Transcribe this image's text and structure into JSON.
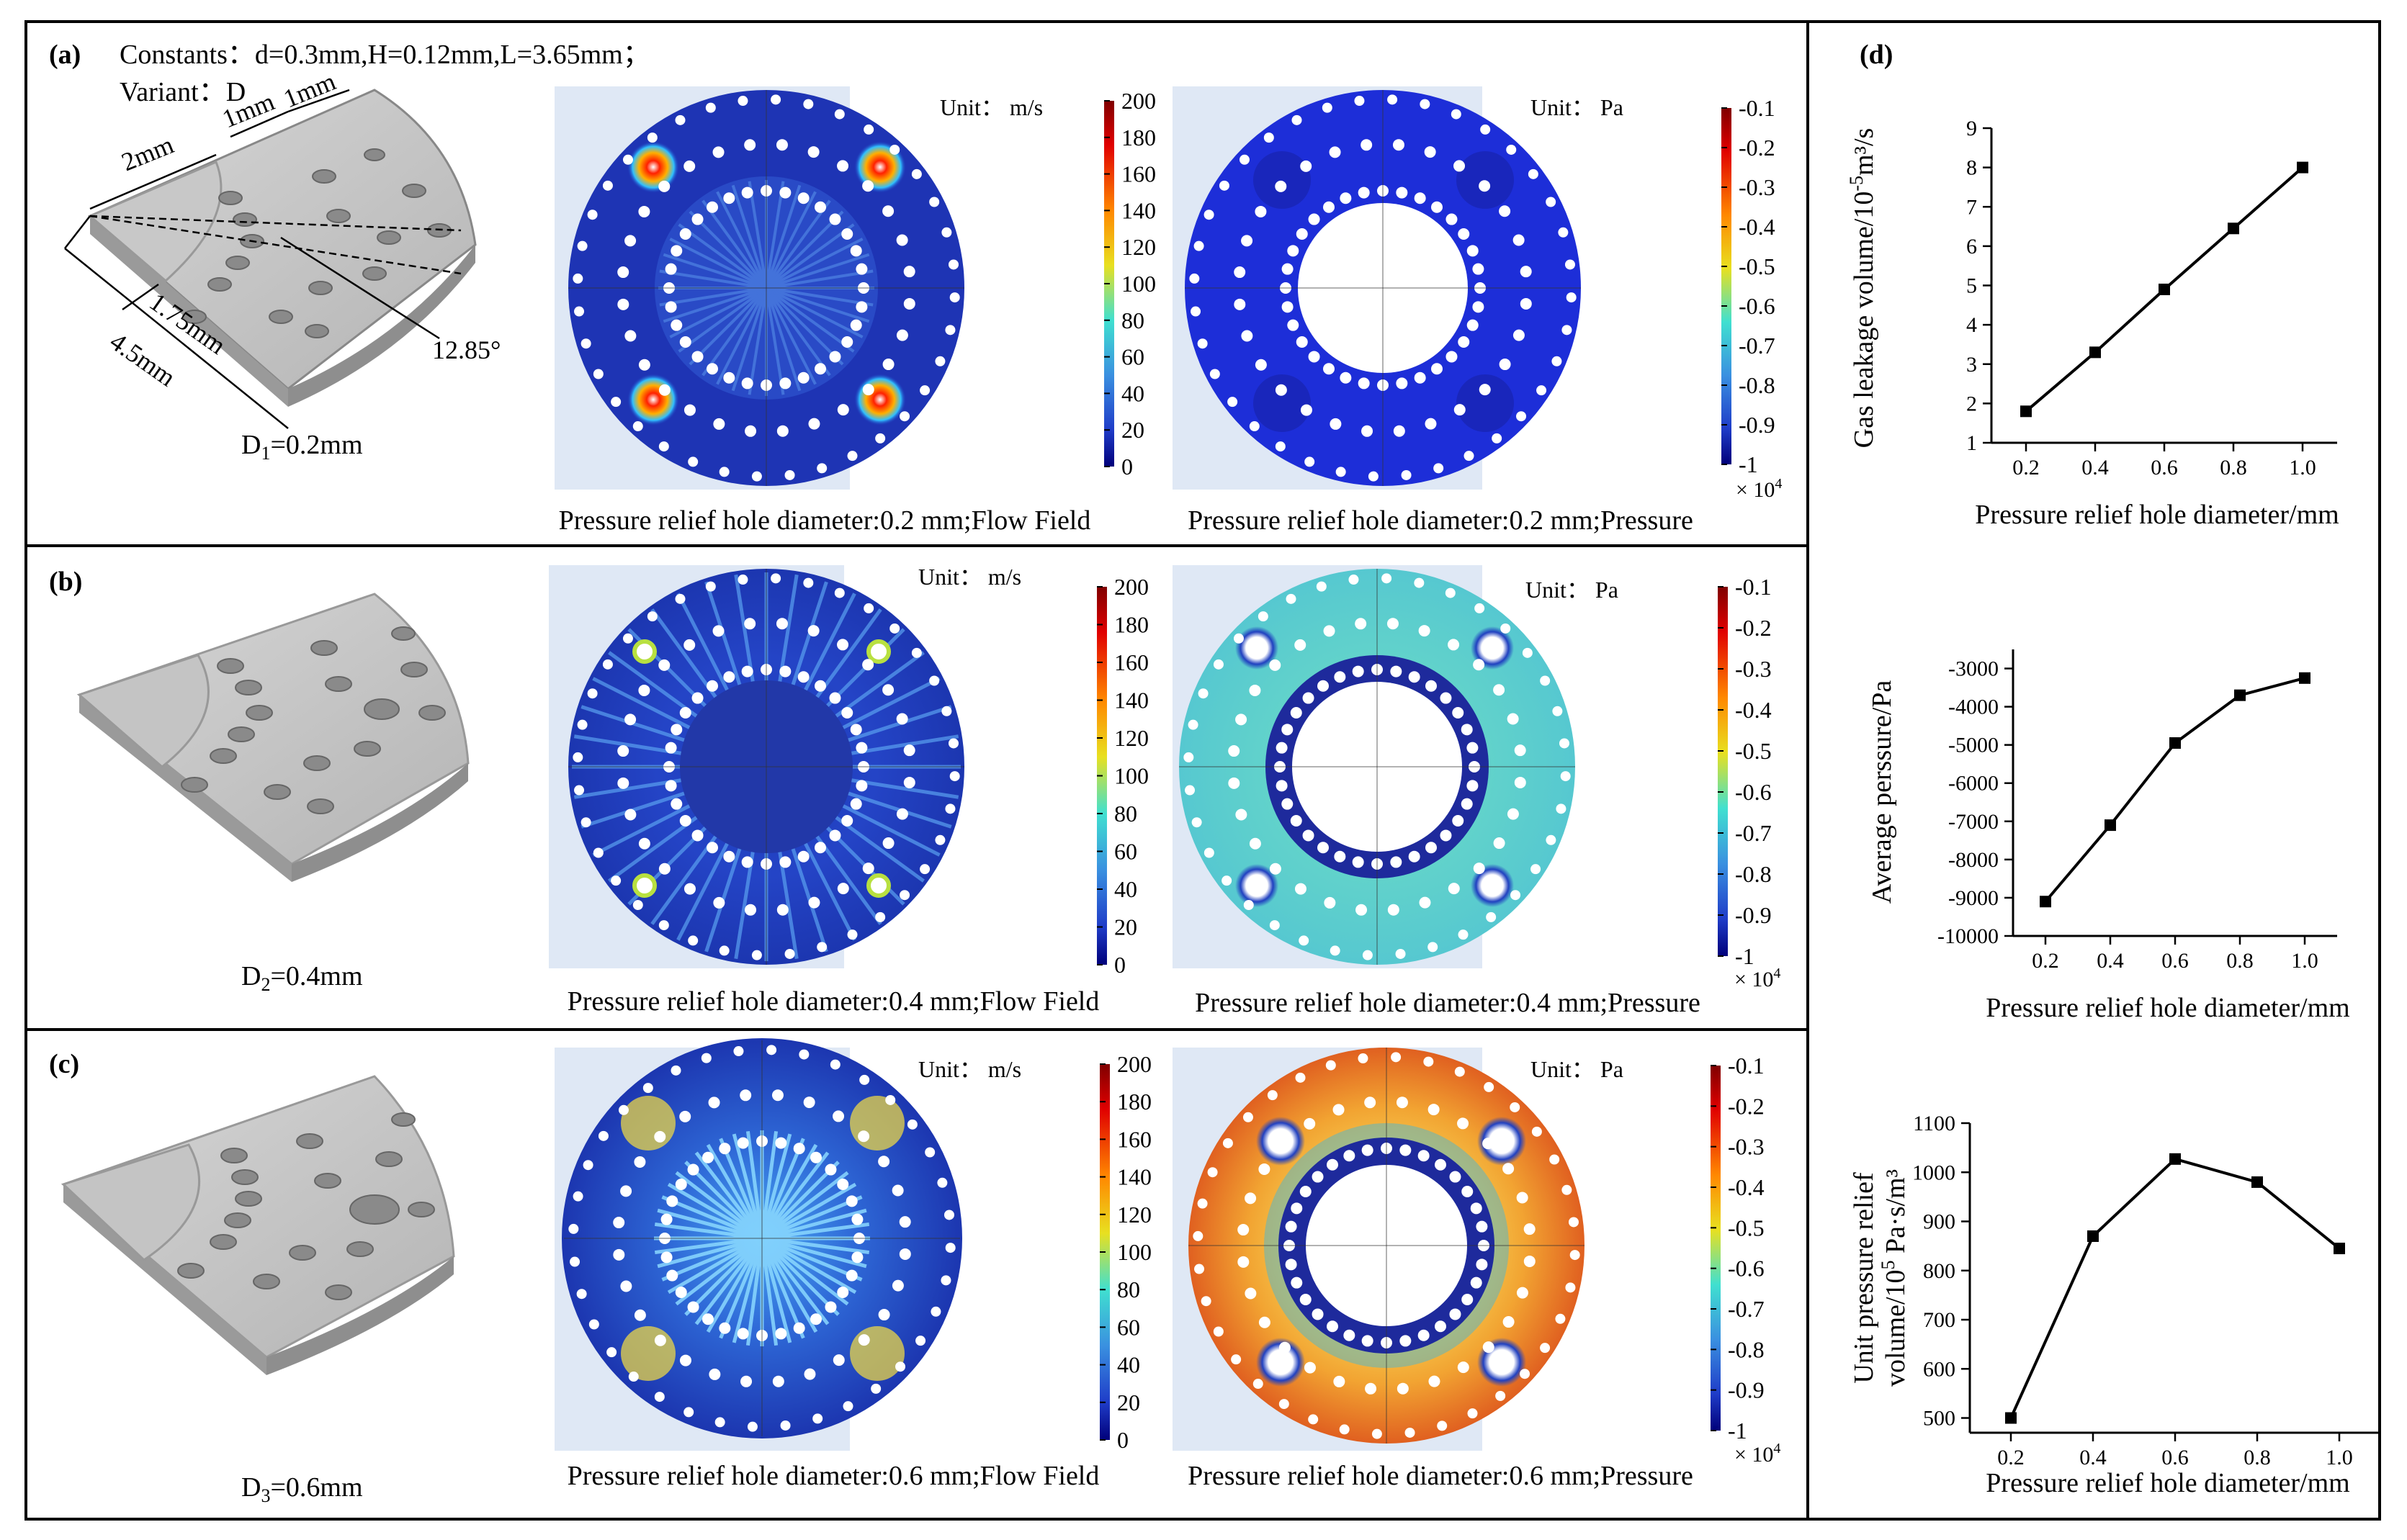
{
  "panels": {
    "a": {
      "label": "(a)",
      "constants": "Constants：d=0.3mm,H=0.12mm,L=3.65mm；",
      "variant": "Variant：D",
      "dims": {
        "d2mm": "2mm",
        "d1mm_a": "1mm",
        "d1mm_b": "1mm",
        "d175": "1.75mm",
        "d45": "4.5mm",
        "angle": "12.85°"
      },
      "diameter_label": "D",
      "diameter_sub": "1",
      "diameter_value": "=0.2mm",
      "flow_caption": "Pressure relief hole diameter:0.2 mm;Flow Field",
      "pressure_caption": "Pressure relief hole diameter:0.2 mm;Pressure"
    },
    "b": {
      "label": "(b)",
      "diameter_label": "D",
      "diameter_sub": "2",
      "diameter_value": "=0.4mm",
      "flow_caption": "Pressure relief hole diameter:0.4 mm;Flow Field",
      "pressure_caption": "Pressure relief hole diameter:0.4 mm;Pressure"
    },
    "c": {
      "label": "(c)",
      "diameter_label": "D",
      "diameter_sub": "3",
      "diameter_value": "=0.6mm",
      "flow_caption": "Pressure relief hole diameter:0.6 mm;Flow Field",
      "pressure_caption": "Pressure relief hole diameter:0.6 mm;Pressure"
    },
    "d": {
      "label": "(d)"
    }
  },
  "colorbars": {
    "flow": {
      "unit": "Unit：  m/s",
      "ticks": [
        "200",
        "180",
        "160",
        "140",
        "120",
        "100",
        "80",
        "60",
        "40",
        "20",
        "0"
      ]
    },
    "pressure": {
      "unit": "Unit：  Pa",
      "ticks": [
        "-0.1",
        "-0.2",
        "-0.3",
        "-0.4",
        "-0.5",
        "-0.6",
        "-0.7",
        "-0.8",
        "-0.9",
        "-1"
      ],
      "multiplier": "× 10",
      "multiplier_exp": "4"
    }
  },
  "colors": {
    "deep_blue": "#1a2fb8",
    "cyan_field": "#5fd3c8",
    "orange_field": "#f0a030",
    "hot_red": "#d81818",
    "line": "#000000"
  },
  "chart_data": [
    {
      "type": "line",
      "ylabel": "Gas leakage volume/10",
      "ylabel_exp": "-5",
      "ylabel_tail": "m³/s",
      "xlabel": "Pressure relief hole diameter/mm",
      "x": [
        0.2,
        0.4,
        0.6,
        0.8,
        1.0
      ],
      "y": [
        1.8,
        3.3,
        4.9,
        6.45,
        8.0
      ],
      "xlim": [
        0.1,
        1.1
      ],
      "ylim": [
        1,
        9
      ],
      "xticks": [
        0.2,
        0.4,
        0.6,
        0.8,
        1.0
      ],
      "xtick_labels": [
        "0.2",
        "0.4",
        "0.6",
        "0.8",
        "1.0"
      ],
      "yticks": [
        1,
        2,
        3,
        4,
        5,
        6,
        7,
        8,
        9
      ],
      "ytick_labels": [
        "1",
        "2",
        "3",
        "4",
        "5",
        "6",
        "7",
        "8",
        "9"
      ]
    },
    {
      "type": "line",
      "ylabel": "Average perssure/Pa",
      "xlabel": "Pressure relief hole diameter/mm",
      "x": [
        0.2,
        0.4,
        0.6,
        0.8,
        1.0
      ],
      "y": [
        -9100,
        -7100,
        -4950,
        -3700,
        -3250
      ],
      "xlim": [
        0.1,
        1.1
      ],
      "ylim": [
        -10000,
        -2500
      ],
      "xticks": [
        0.2,
        0.4,
        0.6,
        0.8,
        1.0
      ],
      "xtick_labels": [
        "0.2",
        "0.4",
        "0.6",
        "0.8",
        "1.0"
      ],
      "yticks": [
        -10000,
        -9000,
        -8000,
        -7000,
        -6000,
        -5000,
        -4000,
        -3000
      ],
      "ytick_labels": [
        "-10000",
        "-9000",
        "-8000",
        "-7000",
        "-6000",
        "-5000",
        "-4000",
        "-3000"
      ]
    },
    {
      "type": "line",
      "ylabel_line1": "Unit pressure relief",
      "ylabel_line2": "volume/10",
      "ylabel_exp": "5",
      "ylabel_tail": " Pa·s/m³",
      "xlabel": "Pressure relief hole diameter/mm",
      "x": [
        0.2,
        0.4,
        0.6,
        0.8,
        1.0
      ],
      "y": [
        500,
        870,
        1027,
        980,
        845
      ],
      "xlim": [
        0.1,
        1.1
      ],
      "ylim": [
        470,
        1100
      ],
      "xticks": [
        0.2,
        0.4,
        0.6,
        0.8,
        1.0
      ],
      "xtick_labels": [
        "0.2",
        "0.4",
        "0.6",
        "0.8",
        "1.0"
      ],
      "yticks": [
        500,
        600,
        700,
        800,
        900,
        1000,
        1100
      ],
      "ytick_labels": [
        "500",
        "600",
        "700",
        "800",
        "900",
        "1000",
        "1100"
      ]
    }
  ]
}
